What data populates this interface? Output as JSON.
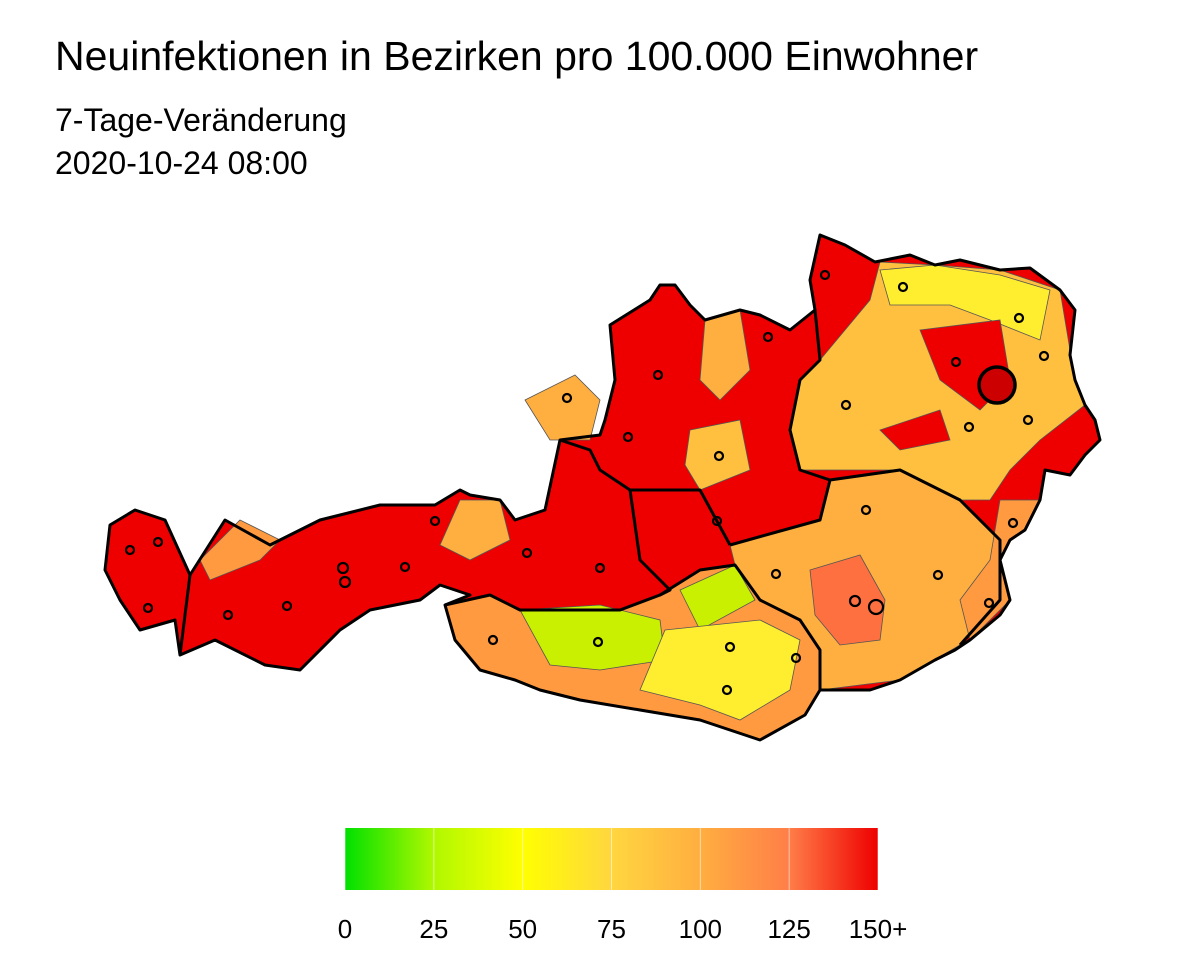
{
  "title": "Neuinfektionen in Bezirken pro 100.000 Einwohner",
  "subtitle": "7-Tage-Veränderung",
  "timestamp": "2020-10-24 08:00",
  "legend": {
    "ticks": [
      0,
      25,
      50,
      75,
      100,
      125,
      {
        "value": 150,
        "label": "150+"
      }
    ],
    "colors": [
      "#00e000",
      "#b0f800",
      "#ffff00",
      "#ffd640",
      "#ffae40",
      "#ff7e48",
      "#ee0000"
    ]
  }
}
